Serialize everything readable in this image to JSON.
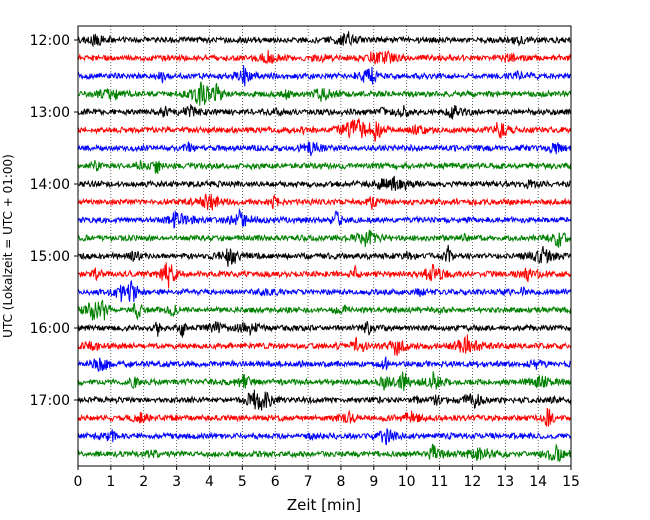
{
  "chart_data": {
    "type": "line",
    "title": "",
    "xlabel": "Zeit  [min]",
    "ylabel": "UTC (Lokalzeit = UTC + 01:00)",
    "xlim": [
      0,
      15
    ],
    "x_ticks": [
      "0",
      "1",
      "2",
      "3",
      "4",
      "5",
      "6",
      "7",
      "8",
      "9",
      "10",
      "11",
      "12",
      "13",
      "14",
      "15"
    ],
    "y_tick_labels": [
      "12:00",
      "13:00",
      "14:00",
      "15:00",
      "16:00",
      "17:00"
    ],
    "grid": "vertical-dotted",
    "trace_interval_minutes": 15,
    "trace_start": "12:00",
    "trace_count": 24,
    "trace_colors": [
      "#000000",
      "#ff0000",
      "#0000ff",
      "#008000"
    ],
    "legend": "none"
  }
}
